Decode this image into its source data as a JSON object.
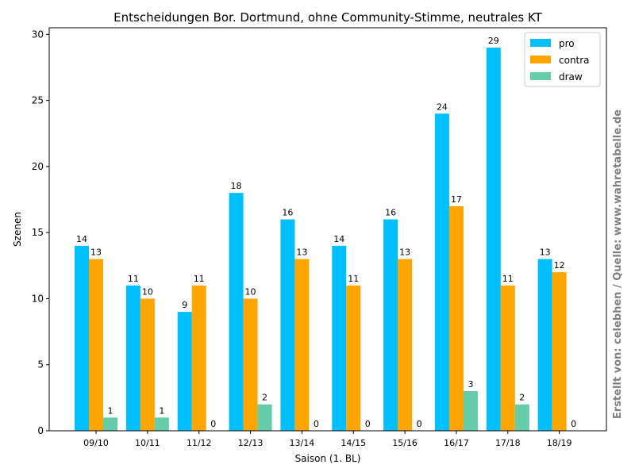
{
  "chart_data": {
    "type": "bar",
    "title": "Entscheidungen Bor. Dortmund, ohne Community-Stimme, neutrales KT",
    "xlabel": "Saison (1. BL)",
    "ylabel": "Szenen",
    "ylim": [
      0,
      30.5
    ],
    "yticks": [
      "0",
      "5",
      "10",
      "15",
      "20",
      "25",
      "30"
    ],
    "grid": false,
    "legend_position": "top-right",
    "categories": [
      "09/10",
      "10/11",
      "11/12",
      "12/13",
      "13/14",
      "14/15",
      "15/16",
      "16/17",
      "17/18",
      "18/19"
    ],
    "series": [
      {
        "name": "pro",
        "color": "#00bfff",
        "values": [
          14,
          11,
          9,
          18,
          16,
          14,
          16,
          24,
          29,
          13
        ]
      },
      {
        "name": "contra",
        "color": "#ffa500",
        "values": [
          13,
          10,
          11,
          10,
          13,
          11,
          13,
          17,
          11,
          12
        ]
      },
      {
        "name": "draw",
        "color": "#66cdaa",
        "values": [
          1,
          1,
          0,
          2,
          0,
          0,
          0,
          3,
          2,
          0
        ]
      }
    ]
  },
  "watermark": "Erstellt von: celebhen / Quelle: www.wahretabelle.de"
}
